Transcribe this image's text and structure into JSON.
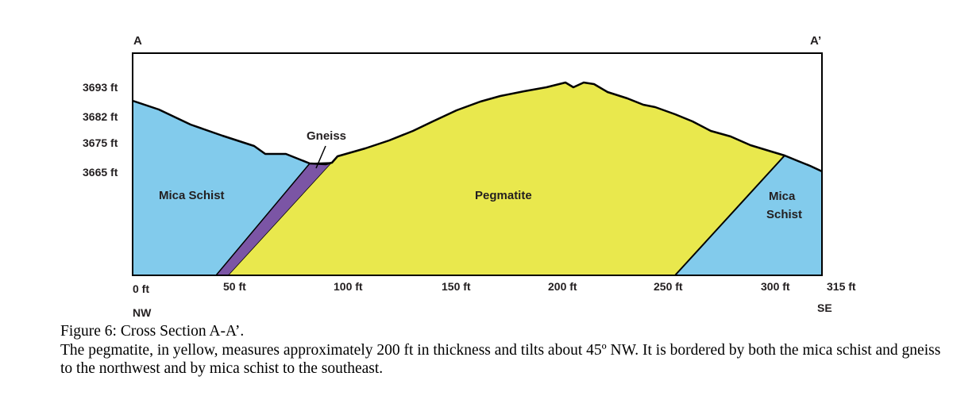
{
  "figure": {
    "section_start": "A",
    "section_end": "A’",
    "elevation_labels": [
      "3693 ft",
      "3682 ft",
      "3675 ft",
      "3665 ft"
    ],
    "distance_labels": [
      "0 ft",
      "50 ft",
      "100 ft",
      "150 ft",
      "200 ft",
      "250 ft",
      "300 ft",
      "315 ft"
    ],
    "direction_left": "NW",
    "direction_right": "SE",
    "units": {
      "mica_schist_left": "Mica Schist",
      "gneiss": "Gneiss",
      "pegmatite": "Pegmatite",
      "mica_schist_right_line1": "Mica",
      "mica_schist_right_line2": "Schist"
    },
    "colors": {
      "mica_schist": "#82cbec",
      "pegmatite": "#e9e84d",
      "gneiss": "#7b55a5",
      "outline": "#000000"
    }
  },
  "caption": {
    "title": "Figure 6: Cross Section A-A’.",
    "body": "The pegmatite, in yellow, measures approximately 200 ft in thickness and tilts about 45º NW. It is bordered by both the mica schist and gneiss to the northwest and by mica schist to the southeast."
  }
}
